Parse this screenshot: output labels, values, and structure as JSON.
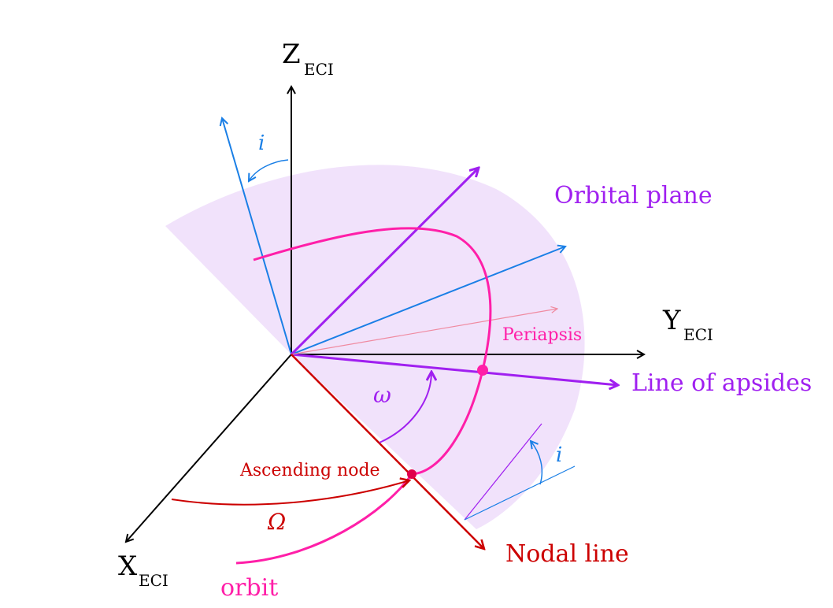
{
  "axes": {
    "z": {
      "main": "Z",
      "sub": "ECI"
    },
    "y": {
      "main": "Y",
      "sub": "ECI"
    },
    "x": {
      "main": "X",
      "sub": "ECI"
    }
  },
  "labels": {
    "orbital_plane": "Orbital plane",
    "line_of_apsides": "Line of apsides",
    "periapsis": "Periapsis",
    "ascending_node": "Ascending node",
    "nodal_line": "Nodal line",
    "orbit": "orbit",
    "omega_small": "ω",
    "omega_big": "Ω",
    "inclination_top": "i",
    "inclination_bottom": "i"
  },
  "colors": {
    "axes": "#000000",
    "plane_fill": "#f1e2fb",
    "orbit": "#ff1fa8",
    "purple": "#a020f0",
    "blue": "#1a7fe6",
    "red": "#cc0000",
    "pink_thin": "#f08aa0"
  }
}
